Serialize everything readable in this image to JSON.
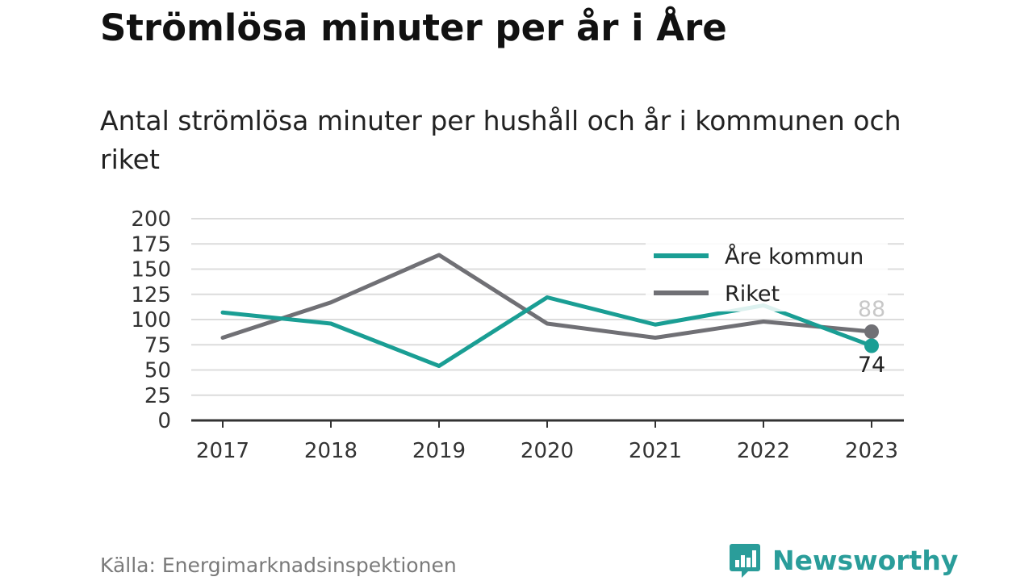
{
  "header": {
    "title": "Strömlösa minuter per år i Åre",
    "subtitle": "Antal strömlösa minuter per hushåll och år i kommunen och riket"
  },
  "chart_data": {
    "type": "line",
    "x": [
      "2017",
      "2018",
      "2019",
      "2020",
      "2021",
      "2022",
      "2023"
    ],
    "yticks": [
      "0",
      "25",
      "50",
      "75",
      "100",
      "125",
      "150",
      "175",
      "200"
    ],
    "ylim": [
      0,
      200
    ],
    "grid": true,
    "legend_position": "top-right",
    "series": [
      {
        "name": "Åre kommun",
        "color": "#1a9e94",
        "values": [
          107,
          96,
          54,
          122,
          95,
          114,
          74
        ]
      },
      {
        "name": "Riket",
        "color": "#707075",
        "values": [
          82,
          117,
          164,
          96,
          82,
          98,
          88
        ]
      }
    ],
    "end_labels": {
      "are": "74",
      "riket": "88"
    }
  },
  "footer": {
    "source": "Källa: Energimarknadsinspektionen",
    "brand": "Newsworthy",
    "brand_color": "#2a9d9a",
    "brand_icon": "bar-chart-speech-bubble-icon"
  }
}
